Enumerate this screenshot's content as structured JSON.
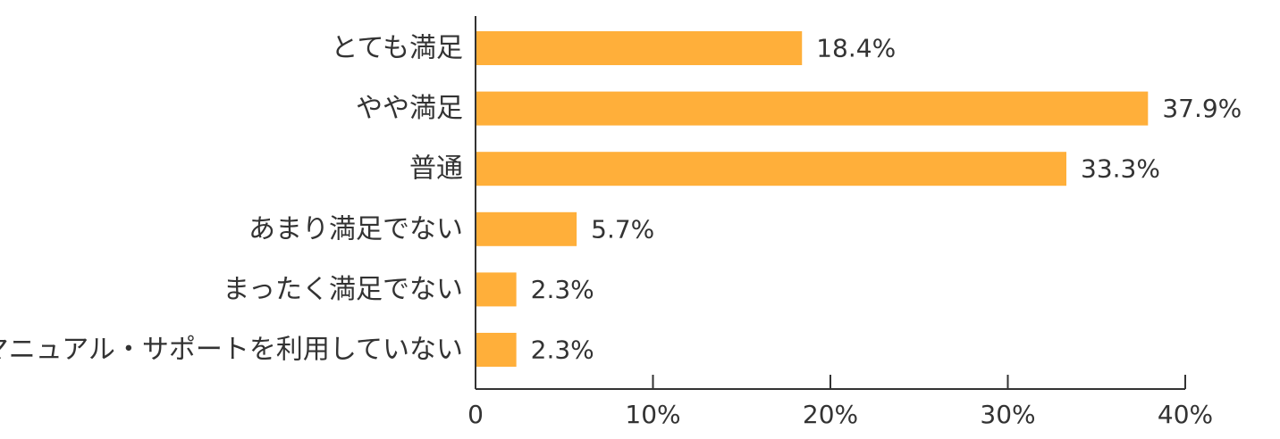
{
  "chart_data": {
    "type": "bar",
    "orientation": "horizontal",
    "categories": [
      "とても満足",
      "やや満足",
      "普通",
      "あまり満足でない",
      "まったく満足でない",
      "マニュアル・サポートを利用していない"
    ],
    "values": [
      18.4,
      37.9,
      33.3,
      5.7,
      2.3,
      2.3
    ],
    "value_labels": [
      "18.4%",
      "37.9%",
      "33.3%",
      "5.7%",
      "2.3%",
      "2.3%"
    ],
    "xlim": [
      0,
      40
    ],
    "xticks": [
      0,
      10,
      20,
      30,
      40
    ],
    "xtick_labels": [
      "0",
      "10%",
      "20%",
      "30%",
      "40%"
    ],
    "title": "",
    "xlabel": "",
    "ylabel": "",
    "grid": false,
    "legend": "none",
    "colors": {
      "bar": "#FFAF3A",
      "axis": "#333333",
      "text": "#333333"
    }
  }
}
